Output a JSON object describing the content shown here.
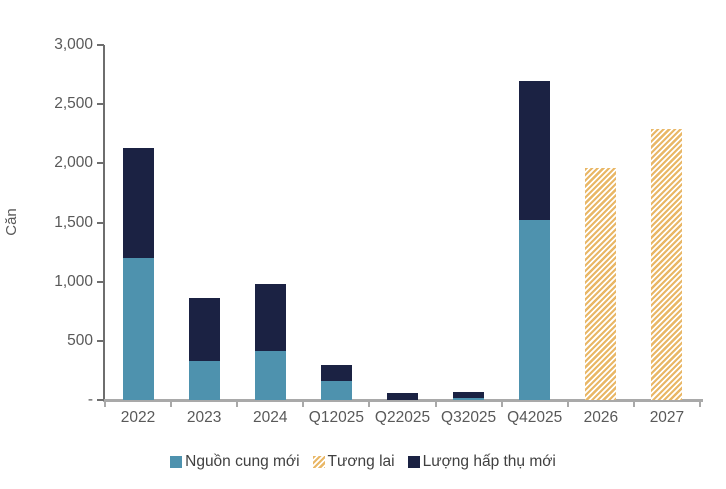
{
  "ui": {
    "y_tick_labels": [
      "3,000",
      "2,500",
      "2,000",
      "1,500",
      "1,000",
      "500",
      "-"
    ]
  },
  "chart_data": {
    "type": "bar",
    "stacked": true,
    "title": "",
    "xlabel": "",
    "ylabel": "Căn",
    "ylim": [
      0,
      3000
    ],
    "ytick_step": 500,
    "grid": false,
    "legend_position": "bottom",
    "categories": [
      "2022",
      "2023",
      "2024",
      "Q12025",
      "Q22025",
      "Q32025",
      "Q42025",
      "2026",
      "2027"
    ],
    "series": [
      {
        "name": "Nguồn cung mới",
        "color": "#4e92ae",
        "pattern": "solid",
        "values": [
          1200,
          330,
          410,
          160,
          0,
          20,
          1520,
          0,
          0
        ]
      },
      {
        "name": "Tương lai",
        "color": "#e9b766",
        "pattern": "diagonal-hatch",
        "values": [
          0,
          0,
          0,
          0,
          0,
          0,
          0,
          1960,
          2290
        ]
      },
      {
        "name": "Lượng hấp thụ mới",
        "color": "#1b2243",
        "pattern": "solid",
        "values": [
          930,
          530,
          570,
          140,
          60,
          50,
          1180,
          0,
          0
        ]
      }
    ]
  }
}
